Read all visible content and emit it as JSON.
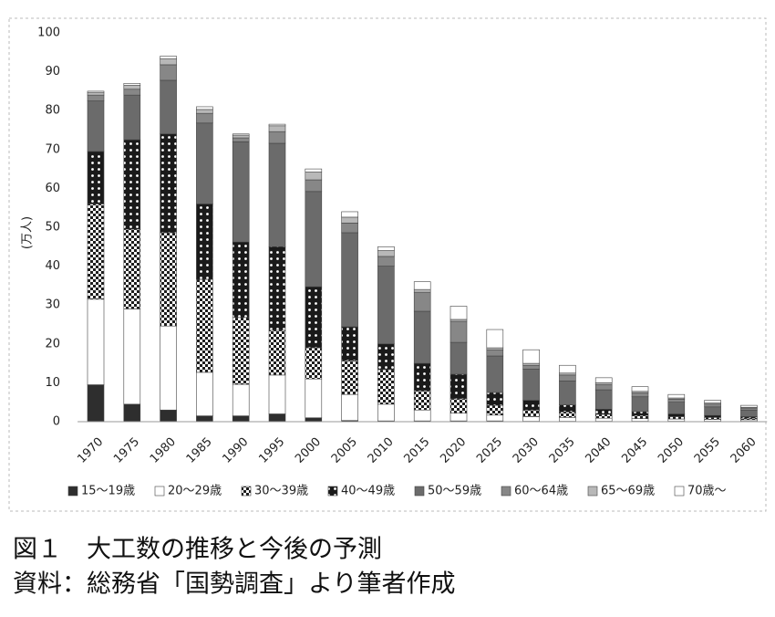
{
  "chart_data": {
    "type": "stacked-bar",
    "y_label": "(万人)",
    "categories": [
      "1970",
      "1975",
      "1980",
      "1985",
      "1990",
      "1995",
      "2000",
      "2005",
      "2010",
      "2015",
      "2020",
      "2025",
      "2030",
      "2035",
      "2040",
      "2045",
      "2050",
      "2055",
      "2060"
    ],
    "series": [
      {
        "name": "15～19歳",
        "color": "#2e2e2e",
        "pattern": "solid",
        "values": [
          9.5,
          4.5,
          3,
          1.5,
          1.5,
          2,
          1,
          0.3,
          0.2,
          0.2,
          0.2,
          0.2,
          0.1,
          0.1,
          0.1,
          0.1,
          0.1,
          0.1,
          0.1
        ]
      },
      {
        "name": "20～29歳",
        "color": "#ffffff",
        "pattern": "solid",
        "values": [
          22,
          24.5,
          21.6,
          11.2,
          8.1,
          10,
          10,
          6.7,
          4.3,
          2.8,
          2,
          1.5,
          1.2,
          1,
          0.8,
          0.7,
          0.6,
          0.5,
          0.4
        ]
      },
      {
        "name": "30～39歳",
        "color": "#1e1e1e",
        "pattern": "checker",
        "values": [
          24.5,
          20.5,
          24,
          23.9,
          17.2,
          11.5,
          8,
          8.7,
          8.9,
          5,
          3.7,
          2.5,
          1.7,
          1.4,
          1,
          0.8,
          0.6,
          0.5,
          0.4
        ]
      },
      {
        "name": "40～49歳",
        "color": "#1a1a1a",
        "pattern": "dots",
        "values": [
          13.5,
          23,
          25.4,
          19.4,
          19.4,
          21.5,
          15.7,
          8.7,
          6.6,
          7,
          6.3,
          3.3,
          2.5,
          1.8,
          1.3,
          1,
          0.7,
          0.5,
          0.4
        ]
      },
      {
        "name": "50～59歳",
        "color": "#6b6b6b",
        "pattern": "solid",
        "values": [
          13,
          11.5,
          13.8,
          20.8,
          25.8,
          26.6,
          24.5,
          24.2,
          20,
          13.4,
          8.2,
          9.4,
          8,
          6.2,
          5,
          3.8,
          3,
          2.2,
          1.7
        ]
      },
      {
        "name": "60～64歳",
        "color": "#878787",
        "pattern": "solid",
        "values": [
          1.5,
          1.5,
          4,
          2.5,
          1,
          3,
          3,
          2.5,
          2.5,
          4.9,
          5.4,
          1.6,
          1,
          1.5,
          1.3,
          1,
          0.8,
          0.7,
          0.5
        ]
      },
      {
        "name": "65～69歳",
        "color": "#b8b8b8",
        "pattern": "solid",
        "values": [
          0.7,
          1,
          1.5,
          1,
          0.7,
          1.5,
          2,
          1.5,
          1.5,
          0.7,
          0.5,
          0.5,
          0.5,
          0.5,
          0.5,
          0.4,
          0.3,
          0.3,
          0.2
        ]
      },
      {
        "name": "70歳～",
        "color": "#ffffff",
        "pattern": "solid",
        "values": [
          0.3,
          0.5,
          0.7,
          0.7,
          0.3,
          0.4,
          0.8,
          1.4,
          1,
          2,
          3.4,
          4.7,
          3.5,
          2,
          1.3,
          1.2,
          0.9,
          0.7,
          0.5
        ]
      }
    ],
    "ylim": [
      0,
      100
    ],
    "yticks": [
      0,
      10,
      20,
      30,
      40,
      50,
      60,
      70,
      80,
      90,
      100
    ],
    "grid": false,
    "legend": "bottom"
  },
  "figure_caption": "図１　大工数の推移と今後の予測",
  "source": "資料：総務省「国勢調査」より筆者作成"
}
